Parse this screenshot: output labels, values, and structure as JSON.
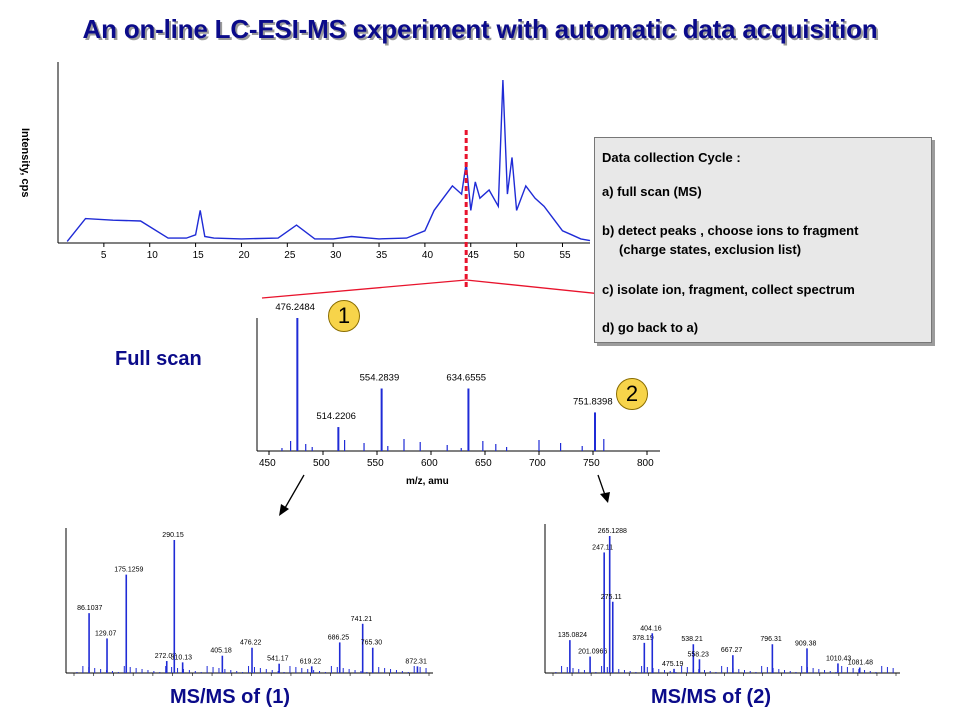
{
  "slide": {
    "title": "An on-line LC-ESI-MS experiment with automatic data acquisition"
  },
  "chromatogram": {
    "ylabel": "Intensity, cps",
    "ticks": [
      "5",
      "10",
      "15",
      "20",
      "25",
      "30",
      "35",
      "40",
      "45",
      "50",
      "55"
    ]
  },
  "info_box": {
    "heading": "Data collection Cycle :",
    "step_a": "a) full scan (MS)",
    "step_b": "b) detect peaks , choose  ions to fragment",
    "step_b2": "(charge states, exclusion list)",
    "step_c": "c) isolate ion, fragment, collect spectrum",
    "step_d": "d) go back to a)"
  },
  "labels": {
    "full_scan": "Full scan",
    "msms1": "MS/MS of (1)",
    "msms2": "MS/MS of (2)",
    "bubble1": "1",
    "bubble2": "2"
  },
  "colors": {
    "title": "#0b0b8a",
    "trace": "#1f2bd6",
    "marker": "#e8132c",
    "bubble": "#f7d44a"
  },
  "chart_data": [
    {
      "type": "line",
      "ylabel": "Intensity, cps",
      "x": [
        1,
        3,
        6,
        9,
        12,
        14,
        15,
        15.5,
        16,
        17,
        20,
        24,
        26,
        28,
        30,
        32,
        35,
        38,
        40,
        41,
        42,
        43,
        44,
        44.5,
        45,
        45.5,
        46,
        47,
        48,
        48.5,
        49,
        49.5,
        50,
        51,
        52,
        53,
        54,
        55,
        56,
        57,
        58
      ],
      "y": [
        2,
        30,
        28,
        27,
        6,
        6,
        10,
        40,
        8,
        6,
        5,
        6,
        22,
        5,
        5,
        8,
        5,
        6,
        15,
        40,
        55,
        70,
        60,
        98,
        40,
        75,
        55,
        65,
        45,
        200,
        60,
        105,
        40,
        70,
        55,
        45,
        30,
        15,
        10,
        5,
        3
      ],
      "ticks": [
        5,
        10,
        15,
        20,
        25,
        30,
        35,
        40,
        45,
        50,
        55
      ]
    },
    {
      "type": "bar",
      "xlabel": "m/z, amu",
      "xlim": [
        450,
        800
      ],
      "ticks": [
        450,
        500,
        550,
        600,
        650,
        700,
        750,
        800
      ],
      "peaks": [
        {
          "x": 476.2484,
          "y": 100,
          "label": "476.2484"
        },
        {
          "x": 514.2206,
          "y": 18,
          "label": "514.2206"
        },
        {
          "x": 554.2839,
          "y": 47,
          "label": "554.2839"
        },
        {
          "x": 634.6555,
          "y": 47,
          "label": "634.6555"
        },
        {
          "x": 751.8398,
          "y": 29,
          "label": "751.8398"
        }
      ]
    },
    {
      "type": "bar",
      "peaks": [
        {
          "x": 86.1037,
          "y": 45,
          "label": "86.1037"
        },
        {
          "x": 129.07,
          "y": 26,
          "label": "129.07"
        },
        {
          "x": 175.1259,
          "y": 74,
          "label": "175.1259"
        },
        {
          "x": 272.07,
          "y": 9,
          "label": "272.07"
        },
        {
          "x": 290.15,
          "y": 100,
          "label": "290.15"
        },
        {
          "x": 310.13,
          "y": 8,
          "label": "310.13"
        },
        {
          "x": 405.18,
          "y": 13,
          "label": "405.18"
        },
        {
          "x": 476.22,
          "y": 19,
          "label": "476.22"
        },
        {
          "x": 541.17,
          "y": 7,
          "label": "541.17"
        },
        {
          "x": 619.22,
          "y": 5,
          "label": "619.22"
        },
        {
          "x": 686.25,
          "y": 23,
          "label": "686.25"
        },
        {
          "x": 741.21,
          "y": 37,
          "label": "741.21"
        },
        {
          "x": 765.3,
          "y": 19,
          "label": "765.30"
        },
        {
          "x": 872.31,
          "y": 5,
          "label": "872.31"
        }
      ]
    },
    {
      "type": "bar",
      "peaks": [
        {
          "x": 135.0824,
          "y": 24,
          "label": "135.0824"
        },
        {
          "x": 201.0966,
          "y": 12,
          "label": "201.0966"
        },
        {
          "x": 247.11,
          "y": 88,
          "label": "247.11"
        },
        {
          "x": 265.1288,
          "y": 100,
          "label": "265.1288"
        },
        {
          "x": 275.11,
          "y": 52,
          "label": "275.11"
        },
        {
          "x": 378.19,
          "y": 22,
          "label": "378.19"
        },
        {
          "x": 404.16,
          "y": 29,
          "label": "404.16"
        },
        {
          "x": 475.19,
          "y": 3,
          "label": "475.19"
        },
        {
          "x": 538.21,
          "y": 21,
          "label": "538.21"
        },
        {
          "x": 558.23,
          "y": 10,
          "label": "558.23"
        },
        {
          "x": 667.27,
          "y": 13,
          "label": "667.27"
        },
        {
          "x": 796.31,
          "y": 21,
          "label": "796.31"
        },
        {
          "x": 909.38,
          "y": 18,
          "label": "909.38"
        },
        {
          "x": 1010.43,
          "y": 7,
          "label": "1010.43"
        },
        {
          "x": 1081.48,
          "y": 4,
          "label": "1081.48"
        }
      ]
    }
  ]
}
